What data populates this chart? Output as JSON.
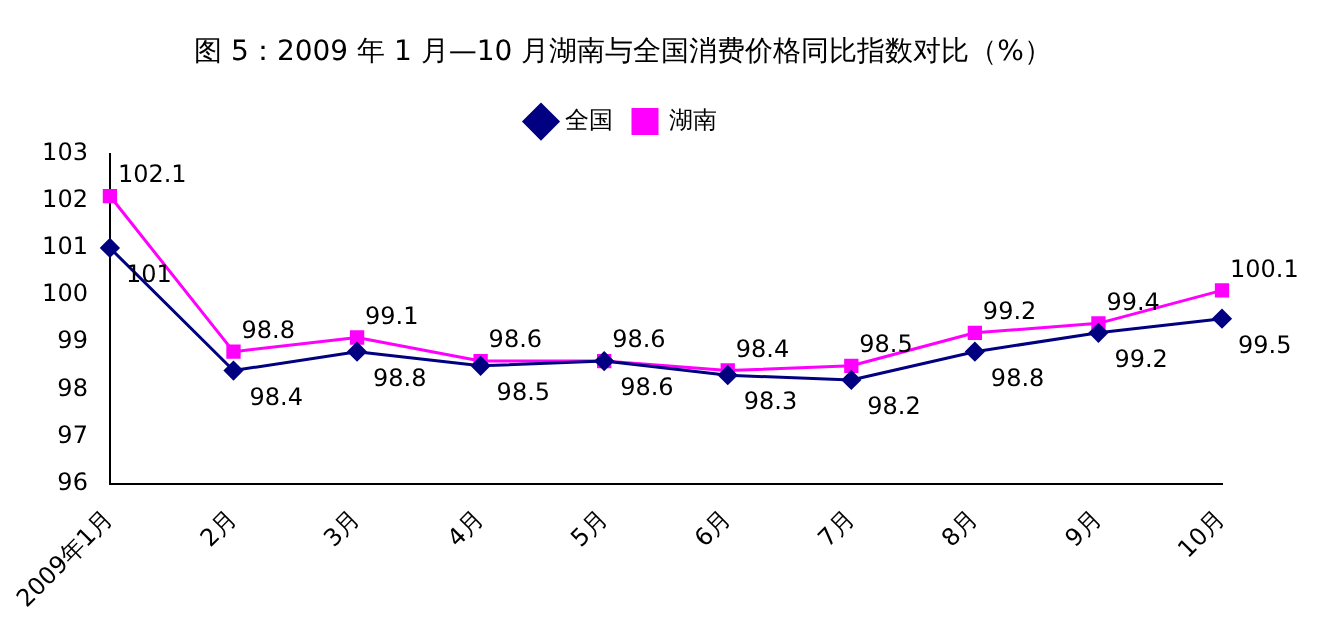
{
  "chart_data": {
    "type": "line",
    "title": "图 5：2009 年 1 月—10 月湖南与全国消费价格同比指数对比（%）",
    "categories": [
      "2009年1月",
      "2月",
      "3月",
      "4月",
      "5月",
      "6月",
      "7月",
      "8月",
      "9月",
      "10月"
    ],
    "series": [
      {
        "name": "全国",
        "color": "#000080",
        "marker": "diamond",
        "values": [
          101,
          98.4,
          98.8,
          98.5,
          98.6,
          98.3,
          98.2,
          98.8,
          99.2,
          99.5
        ]
      },
      {
        "name": "湖南",
        "color": "#ff00ff",
        "marker": "square",
        "values": [
          102.1,
          98.8,
          99.1,
          98.6,
          98.6,
          98.4,
          98.5,
          99.2,
          99.4,
          100.1
        ]
      }
    ],
    "ylim": [
      96,
      103
    ],
    "yticks": [
      96,
      97,
      98,
      99,
      100,
      101,
      102,
      103
    ],
    "grid": false,
    "legend": "top",
    "data_labels": true,
    "line_style": "solid"
  }
}
